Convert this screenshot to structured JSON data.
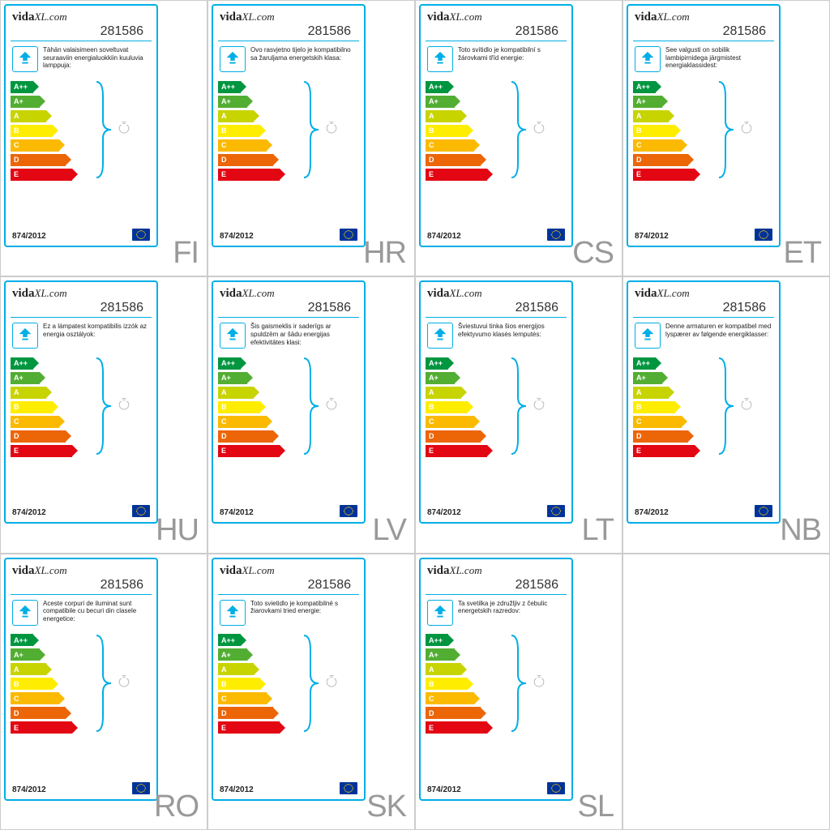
{
  "brand": "vidaXL.com",
  "product_id": "281586",
  "regulation": "874/2012",
  "energy_classes": [
    {
      "label": "A++",
      "color": "#009640",
      "width": 28
    },
    {
      "label": "A+",
      "color": "#52ae32",
      "width": 36
    },
    {
      "label": "A",
      "color": "#c8d400",
      "width": 44
    },
    {
      "label": "B",
      "color": "#ffed00",
      "width": 52
    },
    {
      "label": "C",
      "color": "#fbba00",
      "width": 60
    },
    {
      "label": "D",
      "color": "#ec6608",
      "width": 68
    },
    {
      "label": "E",
      "color": "#e30613",
      "width": 76
    }
  ],
  "labels": [
    {
      "lang": "FI",
      "text": "Tähän valaisimeen soveltuvat seuraaviin energialuokkiin kuuluvia lamppuja:"
    },
    {
      "lang": "HR",
      "text": "Ovo rasvjetno tijelo je kompatibilno sa žaruljama energetskih klasa:"
    },
    {
      "lang": "CS",
      "text": "Toto svítidlo je kompatibilní s žárovkami tříd energie:"
    },
    {
      "lang": "ET",
      "text": "See valgusti on sobilik lambipirnidega järgmistest energiaklassidest:"
    },
    {
      "lang": "HU",
      "text": "Ez a lámpatest kompatibilis izzók az energia osztályok:"
    },
    {
      "lang": "LV",
      "text": "Šis gaismeklis ir saderīgs ar spuldzēm ar šādu energijas efektivitātes klasi:"
    },
    {
      "lang": "LT",
      "text": "Šviestuvui tinka šios energijos efektyvumo klasės lemputės:"
    },
    {
      "lang": "NB",
      "text": "Denne armaturen er kompatibel med lyspærer av følgende energiklasser:"
    },
    {
      "lang": "RO",
      "text": "Aceste corpuri de iluminat sunt compatibile cu becuri din clasele energetice:"
    },
    {
      "lang": "SK",
      "text": "Toto svietidlo je kompatibilné s žiarovkami tried energie:"
    },
    {
      "lang": "SL",
      "text": "Ta svetilka je združljiv z čebulic energetskih razredov:"
    }
  ],
  "colors": {
    "border": "#00aee6",
    "lang_text": "#999999",
    "eu_flag": "#003399"
  }
}
